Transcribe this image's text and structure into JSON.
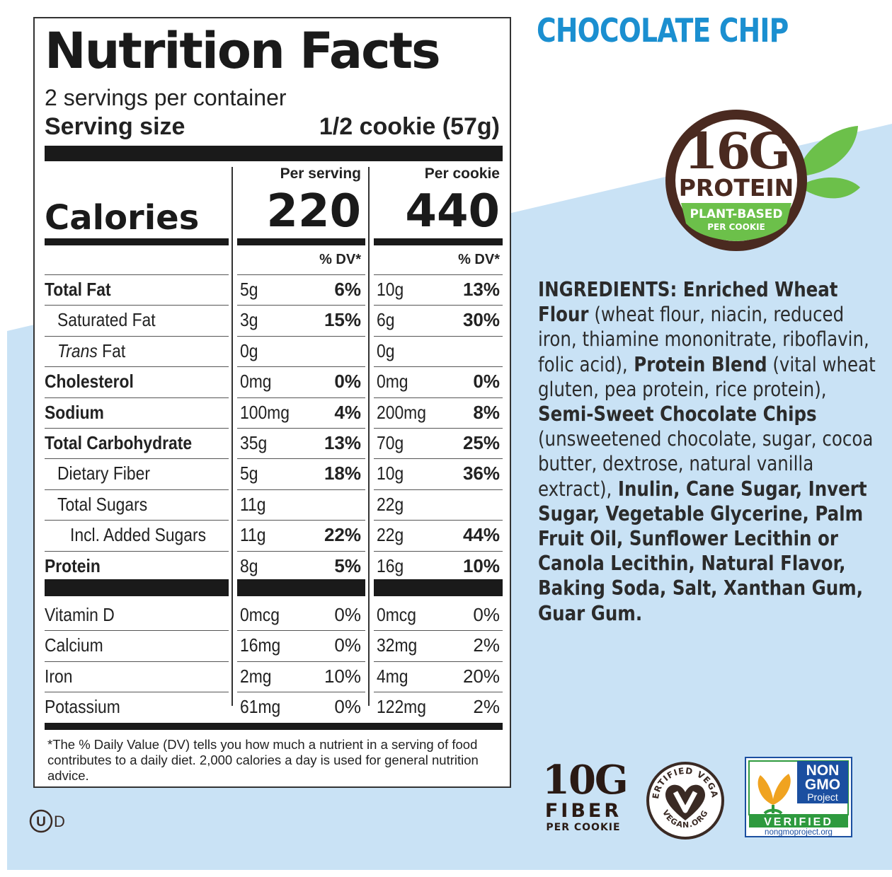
{
  "nutrition_facts": {
    "title": "Nutrition Facts",
    "servings_per_container": "2 servings per container",
    "serving_size_label": "Serving size",
    "serving_size_value": "1/2 cookie (57g)",
    "calories_label": "Calories",
    "columns": [
      {
        "header": "Per serving",
        "calories": "220",
        "dv_header": "% DV*"
      },
      {
        "header": "Per cookie",
        "calories": "440",
        "dv_header": "% DV*"
      }
    ],
    "rows": [
      {
        "label": "Total Fat",
        "bold": true,
        "indent": 0,
        "cells": [
          {
            "amount": "5g",
            "dv": "6%"
          },
          {
            "amount": "10g",
            "dv": "13%"
          }
        ]
      },
      {
        "label": "Saturated Fat",
        "bold": false,
        "indent": 1,
        "cells": [
          {
            "amount": "3g",
            "dv": "15%"
          },
          {
            "amount": "6g",
            "dv": "30%"
          }
        ]
      },
      {
        "label_parts": [
          "Trans",
          " Fat"
        ],
        "bold": false,
        "indent": 1,
        "cells": [
          {
            "amount": "0g",
            "dv": ""
          },
          {
            "amount": "0g",
            "dv": ""
          }
        ]
      },
      {
        "label": "Cholesterol",
        "bold": true,
        "indent": 0,
        "cells": [
          {
            "amount": "0mg",
            "dv": "0%"
          },
          {
            "amount": "0mg",
            "dv": "0%"
          }
        ]
      },
      {
        "label": "Sodium",
        "bold": true,
        "indent": 0,
        "cells": [
          {
            "amount": "100mg",
            "dv": "4%"
          },
          {
            "amount": "200mg",
            "dv": "8%"
          }
        ]
      },
      {
        "label": "Total Carbohydrate",
        "bold": true,
        "indent": 0,
        "cells": [
          {
            "amount": "35g",
            "dv": "13%"
          },
          {
            "amount": "70g",
            "dv": "25%"
          }
        ]
      },
      {
        "label": "Dietary Fiber",
        "bold": false,
        "indent": 1,
        "cells": [
          {
            "amount": "5g",
            "dv": "18%"
          },
          {
            "amount": "10g",
            "dv": "36%"
          }
        ]
      },
      {
        "label": "Total Sugars",
        "bold": false,
        "indent": 1,
        "cells": [
          {
            "amount": "11g",
            "dv": ""
          },
          {
            "amount": "22g",
            "dv": ""
          }
        ]
      },
      {
        "label": "Incl. Added Sugars",
        "bold": false,
        "indent": 2,
        "cells": [
          {
            "amount": "11g",
            "dv": "22%"
          },
          {
            "amount": "22g",
            "dv": "44%"
          }
        ]
      },
      {
        "label": "Protein",
        "bold": true,
        "indent": 0,
        "cells": [
          {
            "amount": "8g",
            "dv": "5%"
          },
          {
            "amount": "16g",
            "dv": "10%"
          }
        ]
      }
    ],
    "vitamin_rows": [
      {
        "label": "Vitamin D",
        "cells": [
          {
            "amount": "0mcg",
            "dv": "0%"
          },
          {
            "amount": "0mcg",
            "dv": "0%"
          }
        ]
      },
      {
        "label": "Calcium",
        "cells": [
          {
            "amount": "16mg",
            "dv": "0%"
          },
          {
            "amount": "32mg",
            "dv": "2%"
          }
        ]
      },
      {
        "label": "Iron",
        "cells": [
          {
            "amount": "2mg",
            "dv": "10%"
          },
          {
            "amount": "4mg",
            "dv": "20%"
          }
        ]
      },
      {
        "label": "Potassium",
        "cells": [
          {
            "amount": "61mg",
            "dv": "0%"
          },
          {
            "amount": "122mg",
            "dv": "2%"
          }
        ]
      }
    ],
    "footnote": "*The % Daily Value (DV) tells you how much a nutrient in a serving of food contributes to a daily diet. 2,000 calories a day is used for general nutrition advice."
  },
  "flavor_title": "CHOCOLATE CHIP",
  "protein_badge": {
    "amount": "16G",
    "label": "PROTEIN",
    "sub1": "PLANT-BASED",
    "sub2": "PER COOKIE"
  },
  "ingredients": {
    "heading": "INGREDIENTS:",
    "segments": [
      {
        "text": " Enriched Wheat Flour",
        "bold": true
      },
      {
        "text": " (wheat flour, niacin, reduced iron, thiamine mononitrate, riboflavin, folic acid),",
        "bold": false
      },
      {
        "text": " Protein Blend",
        "bold": true
      },
      {
        "text": " (vital wheat gluten, pea protein, rice protein),",
        "bold": false
      },
      {
        "text": " Semi-Sweet Chocolate Chips",
        "bold": true
      },
      {
        "text": " (unsweetened chocolate, sugar, cocoa butter, dextrose, natural vanilla extract),",
        "bold": false
      },
      {
        "text": " Inulin, Cane Sugar, Invert Sugar, Vegetable Glycerine, Palm Fruit Oil, Sunflower Lecithin or Canola Lecithin, Natural Flavor, Baking Soda, Salt, Xanthan Gum, Guar Gum.",
        "bold": true
      }
    ]
  },
  "fiber_badge": {
    "amount": "10G",
    "label": "FIBER",
    "sub": "PER COOKIE"
  },
  "vegan_badge": {
    "top_text": "CERTIFIED VEGAN",
    "bottom_text": "VEGAN.ORG"
  },
  "nongmo_badge": {
    "line1": "NON",
    "line2": "GMO",
    "line3": "Project",
    "verified": "VERIFIED",
    "url": "nongmoproject.org"
  },
  "kosher_mark": {
    "symbol": "U",
    "suffix": "D"
  },
  "colors": {
    "light_blue": "#c9e2f5",
    "title_blue": "#1b8fd0",
    "brown": "#4a2a20",
    "green": "#6cc04a",
    "nongmo_blue": "#1b4fa0",
    "nongmo_green": "#2e9a3e"
  }
}
